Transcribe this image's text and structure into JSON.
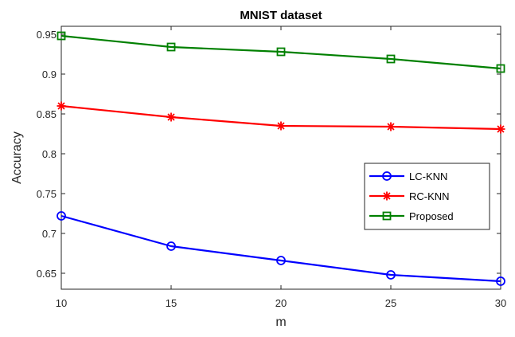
{
  "chart_data": {
    "type": "line",
    "title": "MNIST dataset",
    "xlabel": "m",
    "ylabel": "Accuracy",
    "x": [
      10,
      15,
      20,
      25,
      30
    ],
    "xlim": [
      10,
      30
    ],
    "ylim": [
      0.63,
      0.96
    ],
    "xticks": [
      "10",
      "15",
      "20",
      "25",
      "30"
    ],
    "yticks": [
      "0.65",
      "0.7",
      "0.75",
      "0.8",
      "0.85",
      "0.9",
      "0.95"
    ],
    "grid": false,
    "legend_position": "right",
    "series": [
      {
        "name": "LC-KNN",
        "color": "#0000ff",
        "marker": "circle",
        "values": [
          0.722,
          0.684,
          0.666,
          0.648,
          0.64
        ]
      },
      {
        "name": "RC-KNN",
        "color": "#ff0000",
        "marker": "star",
        "values": [
          0.86,
          0.846,
          0.835,
          0.834,
          0.831
        ]
      },
      {
        "name": "Proposed",
        "color": "#008000",
        "marker": "square",
        "values": [
          0.948,
          0.934,
          0.928,
          0.919,
          0.907
        ]
      }
    ]
  }
}
